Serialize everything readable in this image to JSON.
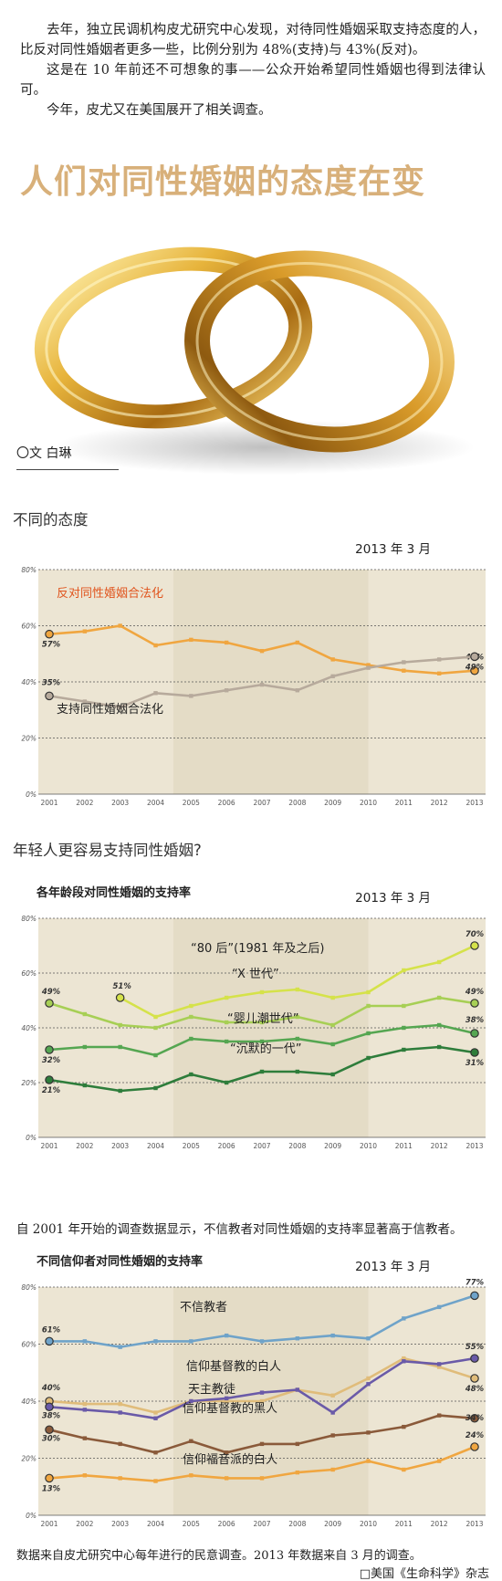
{
  "intro": {
    "p1": "去年，独立民调机构皮尤研究中心发现，对待同性婚姻采取支持态度的人，比反对同性婚姻者更多一些，比例分别为 48%(支持)与 43%(反对)。",
    "p2": "这是在 10 年前还不可想象的事——公众开始希望同性婚姻也得到法律认可。",
    "p3": "今年，皮尤又在美国展开了相关调查。"
  },
  "headline": "人们对同性婚姻的态度在变",
  "byline": "〇文  白琳",
  "section1_title": "不同的态度",
  "section2_title": "年轻人更容易支持同性婚姻?",
  "note": "自 2001 年开始的调查数据显示，不信教者对同性婚姻的支持率显著高于信教者。",
  "footer_source": "数据来自皮尤研究中心每年进行的民意调查。2013 年数据来自 3 月的调查。",
  "footer_magazine": "□美国《生命科学》杂志",
  "chart_data": [
    {
      "type": "line",
      "title": "",
      "date_label": "2013 年 3 月",
      "x": [
        "2001",
        "2002",
        "2003",
        "2004",
        "2005",
        "2006",
        "2007",
        "2008",
        "2009",
        "2010",
        "2011",
        "2012",
        "2013"
      ],
      "ylim": [
        0,
        80
      ],
      "yticks": [
        "0%",
        "20%",
        "40%",
        "60%",
        "80%"
      ],
      "series": [
        {
          "name": "反对同性婚姻合法化",
          "color": "#f0a640",
          "label_color": "#e0541d",
          "values": [
            57,
            58,
            60,
            53,
            55,
            54,
            51,
            54,
            48,
            46,
            44,
            43,
            44
          ],
          "start_label": "57%",
          "end_label": "44%"
        },
        {
          "name": "支持同性婚姻合法化",
          "color": "#b7aa9c",
          "label_color": "#222222",
          "values": [
            35,
            33,
            31,
            36,
            35,
            37,
            39,
            37,
            42,
            45,
            47,
            48,
            49
          ],
          "start_label": "35%",
          "end_label": "49%"
        }
      ]
    },
    {
      "type": "line",
      "title": "各年龄段对同性婚姻的支持率",
      "date_label": "2013 年 3 月",
      "x": [
        "2001",
        "2002",
        "2003",
        "2004",
        "2005",
        "2006",
        "2007",
        "2008",
        "2009",
        "2010",
        "2011",
        "2012",
        "2013"
      ],
      "ylim": [
        0,
        80
      ],
      "yticks": [
        "0%",
        "20%",
        "40%",
        "60%",
        "80%"
      ],
      "series": [
        {
          "name": "“80 后”(1981 年及之后)",
          "color": "#d5e24a",
          "start_index": 2,
          "values": [
            null,
            null,
            51,
            44,
            48,
            51,
            53,
            54,
            51,
            53,
            61,
            64,
            70
          ],
          "start_label": "51%",
          "end_label": "70%"
        },
        {
          "name": "“X 世代”",
          "color": "#a7cf55",
          "values": [
            49,
            45,
            41,
            40,
            44,
            42,
            42,
            44,
            41,
            48,
            48,
            51,
            49
          ],
          "start_label": "49%",
          "end_label": "49%"
        },
        {
          "name": "“婴儿潮世代”",
          "color": "#55a651",
          "values": [
            32,
            33,
            33,
            30,
            36,
            35,
            35,
            36,
            34,
            38,
            40,
            41,
            38
          ],
          "start_label": "32%",
          "end_label": "38%"
        },
        {
          "name": "“沉默的一代”",
          "color": "#2e7d3b",
          "values": [
            21,
            19,
            17,
            18,
            23,
            20,
            24,
            24,
            23,
            29,
            32,
            33,
            31
          ],
          "start_label": "21%",
          "end_label": "31%"
        }
      ]
    },
    {
      "type": "line",
      "title": "不同信仰者对同性婚姻的支持率",
      "date_label": "2013 年 3 月",
      "x": [
        "2001",
        "2002",
        "2003",
        "2004",
        "2005",
        "2006",
        "2007",
        "2008",
        "2009",
        "2010",
        "2011",
        "2012",
        "2013"
      ],
      "ylim": [
        0,
        80
      ],
      "yticks": [
        "0%",
        "20%",
        "40%",
        "60%",
        "80%"
      ],
      "series": [
        {
          "name": "不信教者",
          "color": "#6fa3c9",
          "values": [
            61,
            61,
            59,
            61,
            61,
            63,
            61,
            62,
            63,
            62,
            69,
            73,
            77
          ],
          "start_label": "61%",
          "end_label": "77%"
        },
        {
          "name": "信仰基督教的白人",
          "color": "#e0bc7a",
          "values": [
            40,
            39,
            39,
            36,
            40,
            40,
            40,
            44,
            42,
            48,
            55,
            52,
            48
          ],
          "start_label": "40%",
          "end_label": "48%"
        },
        {
          "name": "天主教徒",
          "color": "#6a5aa8",
          "values": [
            38,
            37,
            36,
            34,
            40,
            41,
            43,
            44,
            36,
            46,
            54,
            53,
            55
          ],
          "start_label": "38%",
          "end_label": "55%"
        },
        {
          "name": "信仰基督教的黑人",
          "color": "#8a5a3a",
          "values": [
            30,
            27,
            25,
            22,
            26,
            22,
            25,
            25,
            28,
            29,
            31,
            35,
            34
          ],
          "start_label": "30%",
          "end_label": "34%"
        },
        {
          "name": "信仰福音派的白人",
          "color": "#f0a640",
          "values": [
            13,
            14,
            13,
            12,
            14,
            13,
            13,
            15,
            16,
            19,
            16,
            19,
            24
          ],
          "start_label": "13%",
          "end_label": "24%"
        }
      ]
    }
  ]
}
